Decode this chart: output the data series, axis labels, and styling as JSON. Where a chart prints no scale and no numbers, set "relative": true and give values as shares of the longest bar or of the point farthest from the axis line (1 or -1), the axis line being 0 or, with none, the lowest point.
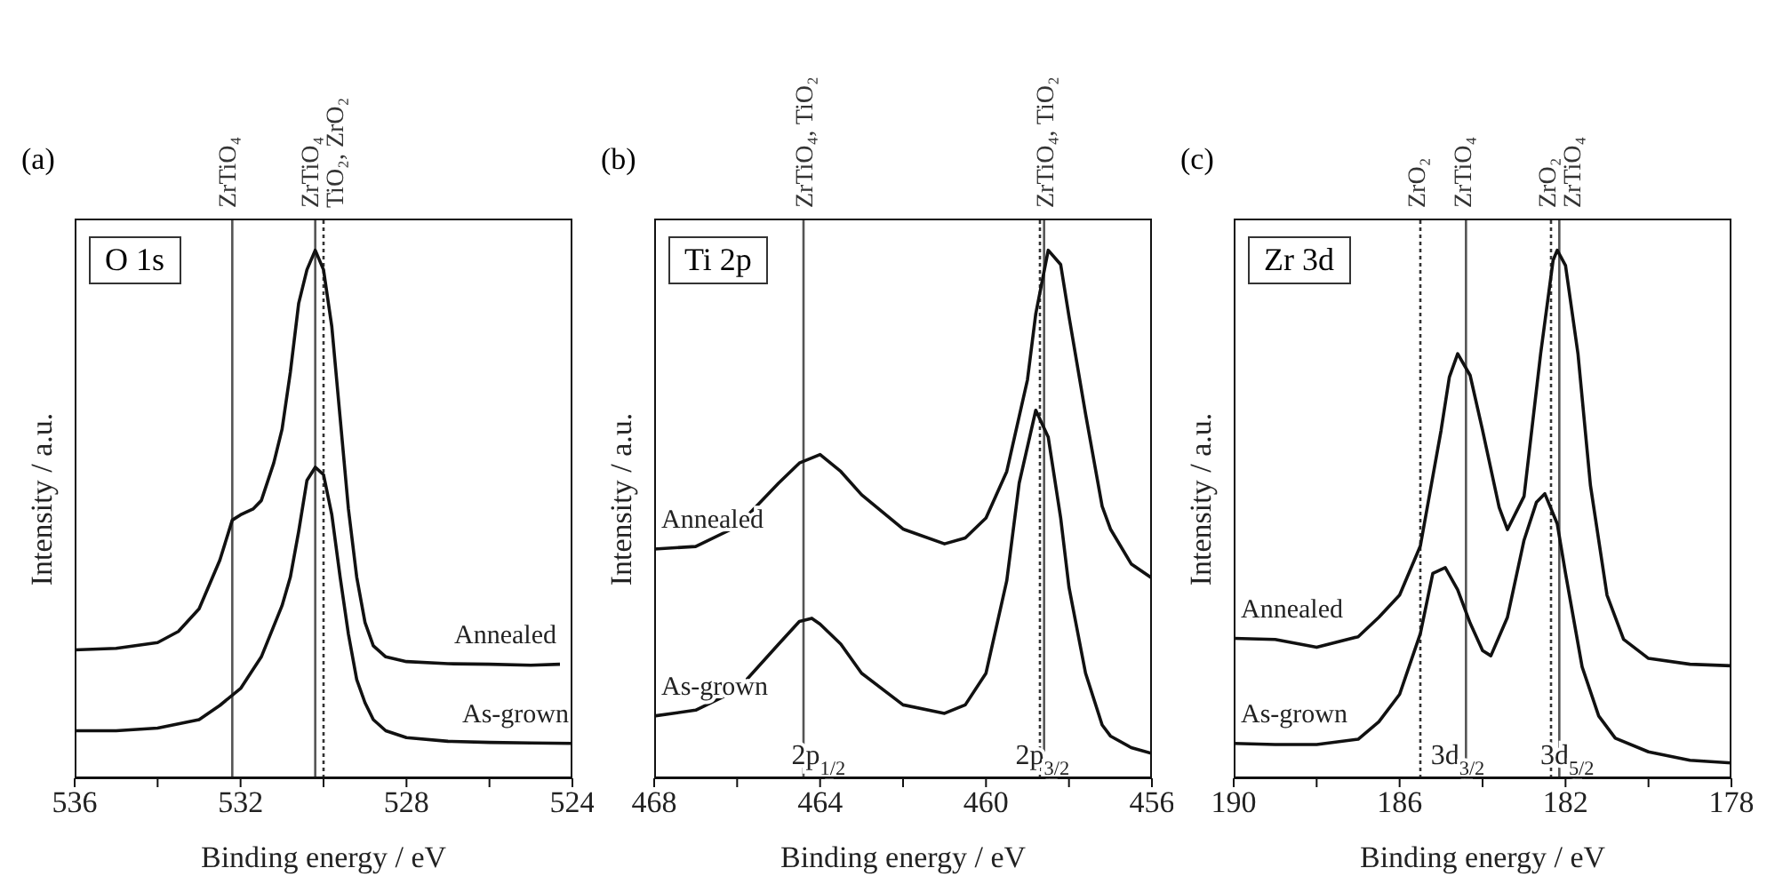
{
  "chart_data": [
    {
      "type": "line",
      "title": "(a)",
      "xlabel": "Binding energy / eV",
      "ylabel": "Intensity / a.u.",
      "relative": true,
      "marker": "none",
      "xlim": [
        536,
        524
      ],
      "xticks": [
        536,
        {
          "value": 534,
          "label": null
        },
        532,
        {
          "value": 530,
          "label": null
        },
        528,
        {
          "value": 526,
          "label": null
        },
        524
      ],
      "annotations": [
        "O 1s"
      ],
      "ref_lines": [
        {
          "axis": "x",
          "value": 532.2,
          "label": "ZrTiO₄",
          "color": "#555555",
          "line_style": "solid"
        },
        {
          "axis": "x",
          "value": 530.2,
          "label": "ZrTiO₄",
          "color": "#555555",
          "line_style": "solid"
        },
        {
          "axis": "x",
          "value": 530.0,
          "label": "TiO₂, ZrO₂",
          "color": "#333333",
          "line_style": "dotted"
        }
      ],
      "series": [
        {
          "name": "Annealed",
          "color": "#111111",
          "x": [
            536,
            535,
            534,
            533.5,
            533,
            532.5,
            532.2,
            532,
            531.7,
            531.5,
            531.2,
            531,
            530.8,
            530.6,
            530.4,
            530.2,
            530.0,
            529.8,
            529.6,
            529.4,
            529.2,
            529,
            528.8,
            528.5,
            528,
            527,
            526,
            525,
            524.3
          ],
          "values": [
            0.243,
            0.246,
            0.257,
            0.278,
            0.321,
            0.413,
            0.489,
            0.499,
            0.51,
            0.526,
            0.597,
            0.661,
            0.769,
            0.899,
            0.963,
            1.0,
            0.963,
            0.855,
            0.683,
            0.51,
            0.381,
            0.295,
            0.251,
            0.23,
            0.221,
            0.217,
            0.216,
            0.214,
            0.216
          ]
        },
        {
          "name": "As-grown",
          "color": "#111111",
          "x": [
            536,
            535,
            534,
            533,
            532.5,
            532,
            531.5,
            531,
            530.8,
            530.6,
            530.4,
            530.2,
            530.0,
            529.8,
            529.6,
            529.4,
            529.2,
            529,
            528.8,
            528.5,
            528,
            527,
            526,
            525,
            524
          ],
          "values": [
            0.09,
            0.09,
            0.095,
            0.111,
            0.138,
            0.17,
            0.23,
            0.327,
            0.381,
            0.467,
            0.564,
            0.589,
            0.575,
            0.499,
            0.381,
            0.273,
            0.187,
            0.143,
            0.111,
            0.09,
            0.077,
            0.07,
            0.068,
            0.067,
            0.066
          ]
        }
      ]
    },
    {
      "type": "line",
      "title": "(b)",
      "xlabel": "Binding energy / eV",
      "ylabel": "Intensity / a.u.",
      "relative": true,
      "marker": "none",
      "xlim": [
        468,
        456
      ],
      "xticks": [
        468,
        {
          "value": 466,
          "label": null
        },
        464,
        {
          "value": 462,
          "label": null
        },
        460,
        {
          "value": 458,
          "label": null
        },
        456
      ],
      "annotations": [
        "Ti 2p",
        "2p$_{1/2}$",
        "2p$_{3/2}$"
      ],
      "ref_lines": [
        {
          "axis": "x",
          "value": 464.4,
          "label": "ZrTiO₄, TiO₂",
          "color": "#555555",
          "line_style": "solid"
        },
        {
          "axis": "x",
          "value": 458.6,
          "label": "ZrTiO₄, TiO₂",
          "color": "#555555",
          "line_style": "solid"
        },
        {
          "axis": "x",
          "value": 458.7,
          "label": null,
          "color": "#333333",
          "line_style": "dotted"
        }
      ],
      "series": [
        {
          "name": "Annealed",
          "color": "#111111",
          "x": [
            468,
            467,
            466,
            465,
            464.5,
            464,
            463.5,
            463,
            462,
            461,
            460.5,
            460,
            459.5,
            459,
            458.8,
            458.5,
            458.2,
            458,
            457.6,
            457.2,
            457,
            456.5,
            456
          ],
          "values": [
            0.434,
            0.439,
            0.477,
            0.559,
            0.597,
            0.613,
            0.581,
            0.537,
            0.472,
            0.444,
            0.455,
            0.493,
            0.581,
            0.755,
            0.88,
            1.0,
            0.973,
            0.875,
            0.69,
            0.515,
            0.472,
            0.406,
            0.379
          ]
        },
        {
          "name": "As-grown",
          "color": "#111111",
          "x": [
            468,
            467,
            466,
            465,
            464.5,
            464.2,
            464,
            463.5,
            463,
            462,
            461,
            460.5,
            460,
            459.5,
            459.2,
            458.8,
            458.5,
            458.2,
            458,
            457.6,
            457.2,
            457,
            456.5,
            456
          ],
          "values": [
            0.118,
            0.129,
            0.167,
            0.254,
            0.297,
            0.303,
            0.292,
            0.254,
            0.199,
            0.139,
            0.123,
            0.139,
            0.199,
            0.374,
            0.559,
            0.697,
            0.646,
            0.493,
            0.362,
            0.199,
            0.101,
            0.08,
            0.058,
            0.047
          ]
        }
      ]
    },
    {
      "type": "line",
      "title": "(c)",
      "xlabel": "Binding energy / eV",
      "ylabel": "Intensity / a.u.",
      "relative": true,
      "marker": "none",
      "xlim": [
        190,
        178
      ],
      "xticks": [
        190,
        {
          "value": 188,
          "label": null
        },
        186,
        {
          "value": 184,
          "label": null
        },
        182,
        {
          "value": 180,
          "label": null
        },
        178
      ],
      "annotations": [
        "Zr 3d",
        "3d$_{3/2}$",
        "3d$_{5/2}$"
      ],
      "ref_lines": [
        {
          "axis": "x",
          "value": 185.5,
          "label": "ZrO₂",
          "color": "#333333",
          "line_style": "dotted"
        },
        {
          "axis": "x",
          "value": 184.4,
          "label": "ZrTiO₄",
          "color": "#555555",
          "line_style": "solid"
        },
        {
          "axis": "x",
          "value": 182.35,
          "label": "ZrO₂",
          "color": "#333333",
          "line_style": "dotted"
        },
        {
          "axis": "x",
          "value": 182.15,
          "label": "ZrTiO₄",
          "color": "#555555",
          "line_style": "solid"
        }
      ],
      "series": [
        {
          "name": "Annealed",
          "color": "#111111",
          "x": [
            190,
            189,
            188,
            187,
            186.5,
            186,
            185.5,
            185,
            184.8,
            184.6,
            184.3,
            184,
            183.6,
            183.4,
            183,
            182.6,
            182.3,
            182.2,
            182,
            181.7,
            181.4,
            181,
            180.6,
            180,
            179,
            178
          ],
          "values": [
            0.265,
            0.263,
            0.248,
            0.268,
            0.305,
            0.347,
            0.44,
            0.659,
            0.76,
            0.804,
            0.763,
            0.659,
            0.513,
            0.471,
            0.534,
            0.804,
            0.981,
            1.0,
            0.971,
            0.804,
            0.555,
            0.347,
            0.263,
            0.227,
            0.216,
            0.213
          ]
        },
        {
          "name": "As-grown",
          "color": "#111111",
          "x": [
            190,
            189,
            188,
            187,
            186.5,
            186,
            185.5,
            185.2,
            184.9,
            184.6,
            184.3,
            184,
            183.8,
            183.4,
            183,
            182.7,
            182.5,
            182.2,
            182,
            181.6,
            181.2,
            180.8,
            180,
            179,
            178
          ],
          "values": [
            0.066,
            0.064,
            0.064,
            0.074,
            0.107,
            0.159,
            0.274,
            0.388,
            0.399,
            0.357,
            0.294,
            0.242,
            0.232,
            0.305,
            0.451,
            0.523,
            0.539,
            0.482,
            0.388,
            0.211,
            0.118,
            0.076,
            0.05,
            0.034,
            0.029
          ]
        }
      ]
    }
  ]
}
